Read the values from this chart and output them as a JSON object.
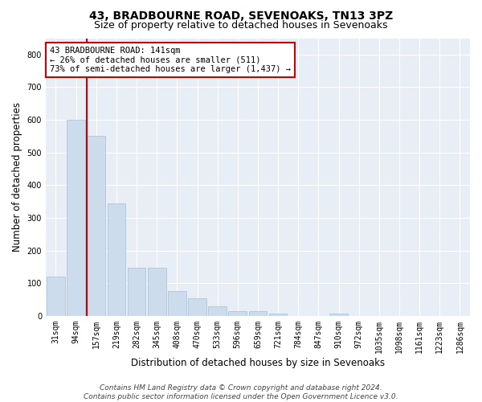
{
  "title": "43, BRADBOURNE ROAD, SEVENOAKS, TN13 3PZ",
  "subtitle": "Size of property relative to detached houses in Sevenoaks",
  "xlabel": "Distribution of detached houses by size in Sevenoaks",
  "ylabel": "Number of detached properties",
  "categories": [
    "31sqm",
    "94sqm",
    "157sqm",
    "219sqm",
    "282sqm",
    "345sqm",
    "408sqm",
    "470sqm",
    "533sqm",
    "596sqm",
    "659sqm",
    "721sqm",
    "784sqm",
    "847sqm",
    "910sqm",
    "972sqm",
    "1035sqm",
    "1098sqm",
    "1161sqm",
    "1223sqm",
    "1286sqm"
  ],
  "values": [
    120,
    600,
    550,
    345,
    148,
    148,
    75,
    55,
    30,
    15,
    14,
    8,
    0,
    0,
    8,
    0,
    0,
    0,
    0,
    0,
    0
  ],
  "bar_color": "#ccdcec",
  "bar_edge_color": "#a8c0d8",
  "vline_x_index": 2,
  "vline_color": "#cc0000",
  "annotation_text": "43 BRADBOURNE ROAD: 141sqm\n← 26% of detached houses are smaller (511)\n73% of semi-detached houses are larger (1,437) →",
  "annotation_box_facecolor": "#ffffff",
  "annotation_box_edgecolor": "#cc0000",
  "ylim": [
    0,
    850
  ],
  "yticks": [
    0,
    100,
    200,
    300,
    400,
    500,
    600,
    700,
    800
  ],
  "footer": "Contains HM Land Registry data © Crown copyright and database right 2024.\nContains public sector information licensed under the Open Government Licence v3.0.",
  "bg_color": "#ffffff",
  "plot_bg_color": "#e8eef5",
  "grid_color": "#ffffff",
  "title_fontsize": 10,
  "subtitle_fontsize": 9,
  "axis_label_fontsize": 8.5,
  "tick_fontsize": 7,
  "footer_fontsize": 6.5,
  "annotation_fontsize": 7.5
}
